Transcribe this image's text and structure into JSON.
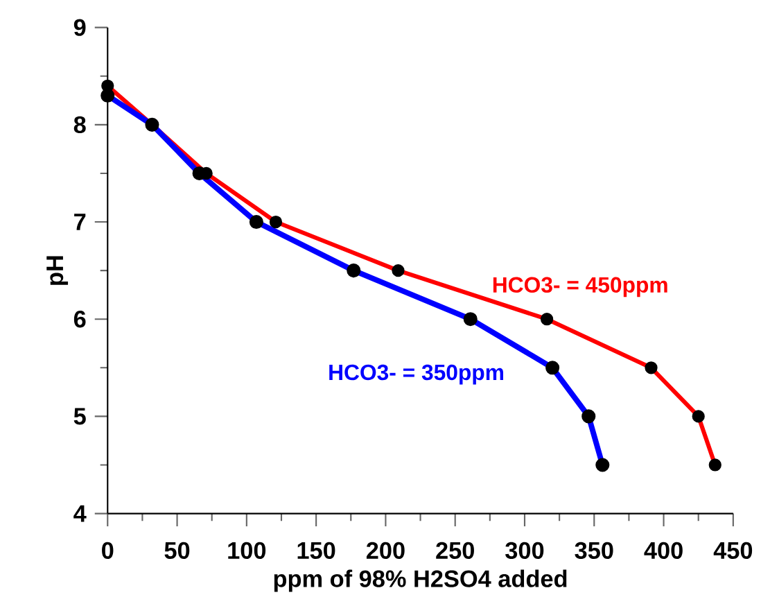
{
  "chart_data": {
    "type": "line",
    "xlabel": "ppm of 98% H2SO4 added",
    "ylabel": "pH",
    "xlim": [
      0,
      450
    ],
    "xticks": [
      0,
      50,
      100,
      150,
      200,
      250,
      300,
      350,
      400,
      450
    ],
    "ylim": [
      4,
      9
    ],
    "yticks": [
      4,
      5,
      6,
      7,
      8,
      9
    ],
    "grid": false,
    "legend": false,
    "marker": "circle",
    "line_style": "solid",
    "series": [
      {
        "name": "HCO3- = 450ppm",
        "color": "#ff0000",
        "x": [
          0,
          32,
          71,
          121,
          209,
          316,
          391,
          425,
          437
        ],
        "values": [
          8.4,
          8.0,
          7.5,
          7.0,
          6.5,
          6.0,
          5.5,
          5.0,
          4.5
        ]
      },
      {
        "name": "HCO3- = 350ppm",
        "color": "#0000ff",
        "x": [
          0,
          32,
          66,
          107,
          177,
          261,
          320,
          346,
          356
        ],
        "values": [
          8.3,
          8.0,
          7.5,
          7.0,
          6.5,
          6.0,
          5.5,
          5.0,
          4.5
        ]
      }
    ]
  }
}
